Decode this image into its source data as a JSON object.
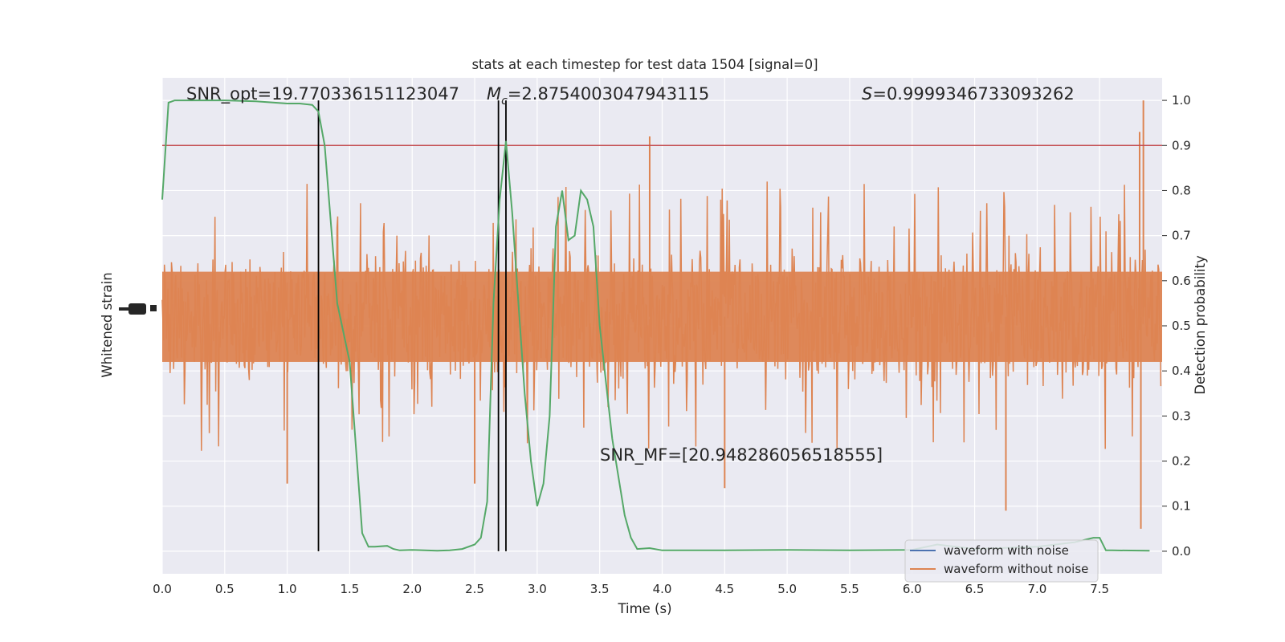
{
  "chart_data": {
    "type": "line",
    "title": "stats at each timestep for test data 1504 [signal=0]",
    "xlabel": "Time (s)",
    "ylabel_left": "Whitened strain",
    "ylabel_right": "Detection probability",
    "xlim": [
      0.0,
      8.0
    ],
    "ylim_right": [
      -0.05,
      1.05
    ],
    "x_ticks": [
      "0.0",
      "0.5",
      "1.0",
      "1.5",
      "2.0",
      "2.5",
      "3.0",
      "3.5",
      "4.0",
      "4.5",
      "5.0",
      "5.5",
      "6.0",
      "6.5",
      "7.0",
      "7.5"
    ],
    "y_ticks_right": [
      "0.0",
      "0.1",
      "0.2",
      "0.3",
      "0.4",
      "0.5",
      "0.6",
      "0.7",
      "0.8",
      "0.9",
      "1.0"
    ],
    "grid": true,
    "background": "#eaeaf2",
    "colors": {
      "noise": "#dd8452",
      "probability": "#55a868",
      "threshold": "#c44e52",
      "marker": "#000000",
      "with_noise": "#4c72b0"
    },
    "threshold": 0.9,
    "vertical_markers": [
      1.25,
      2.69,
      2.75
    ],
    "annotations": {
      "snr_opt": "SNR_opt=19.770336151123047",
      "mc_symbol": "M",
      "mc_sub": "c",
      "mc_value": "=2.8754003047943115",
      "s_symbol": "S",
      "s_value": "=0.9999346733093262",
      "snr_mf": "SNR_MF=[20.948286056518555]"
    },
    "legend": {
      "position": "lower right",
      "entries": [
        "waveform with noise",
        "waveform without noise"
      ]
    },
    "series": [
      {
        "name": "waveform with noise",
        "color": "#4c72b0",
        "visible_line": false
      },
      {
        "name": "waveform without noise",
        "color": "#dd8452",
        "note_values": "dense noise around probability ~0.52 with spikes",
        "spikes": [
          {
            "x": 3.9,
            "y": 0.92
          },
          {
            "x": 7.85,
            "y": 1.0
          },
          {
            "x": 7.82,
            "y": 0.93
          },
          {
            "x": 7.83,
            "y": 0.05
          },
          {
            "x": 6.75,
            "y": 0.09
          },
          {
            "x": 2.5,
            "y": 0.15
          },
          {
            "x": 1.0,
            "y": 0.15
          },
          {
            "x": 4.5,
            "y": 0.14
          }
        ]
      },
      {
        "name": "Detection probability",
        "color": "#55a868",
        "x": [
          0.0,
          0.05,
          0.1,
          0.2,
          0.3,
          0.5,
          0.75,
          1.0,
          1.1,
          1.2,
          1.25,
          1.3,
          1.4,
          1.5,
          1.6,
          1.65,
          1.7,
          1.8,
          1.85,
          1.9,
          2.0,
          2.1,
          2.2,
          2.3,
          2.4,
          2.5,
          2.55,
          2.6,
          2.65,
          2.7,
          2.75,
          2.8,
          2.85,
          2.9,
          2.95,
          3.0,
          3.05,
          3.1,
          3.15,
          3.2,
          3.25,
          3.3,
          3.35,
          3.4,
          3.45,
          3.5,
          3.6,
          3.7,
          3.75,
          3.8,
          3.9,
          4.0,
          4.5,
          5.0,
          5.5,
          6.0,
          6.2,
          6.5,
          7.0,
          7.3,
          7.45,
          7.5,
          7.55,
          7.6,
          7.9
        ],
        "y": [
          0.78,
          0.995,
          1.0,
          1.0,
          1.0,
          1.0,
          0.998,
          0.993,
          0.993,
          0.99,
          0.975,
          0.9,
          0.55,
          0.42,
          0.04,
          0.01,
          0.01,
          0.012,
          0.005,
          0.002,
          0.003,
          0.002,
          0.001,
          0.002,
          0.005,
          0.015,
          0.03,
          0.11,
          0.55,
          0.78,
          0.91,
          0.75,
          0.55,
          0.35,
          0.2,
          0.1,
          0.15,
          0.3,
          0.72,
          0.8,
          0.69,
          0.7,
          0.8,
          0.78,
          0.72,
          0.5,
          0.25,
          0.08,
          0.03,
          0.005,
          0.007,
          0.002,
          0.002,
          0.003,
          0.002,
          0.003,
          0.015,
          0.005,
          0.01,
          0.02,
          0.03,
          0.03,
          0.002,
          0.002,
          0.001
        ]
      }
    ]
  }
}
